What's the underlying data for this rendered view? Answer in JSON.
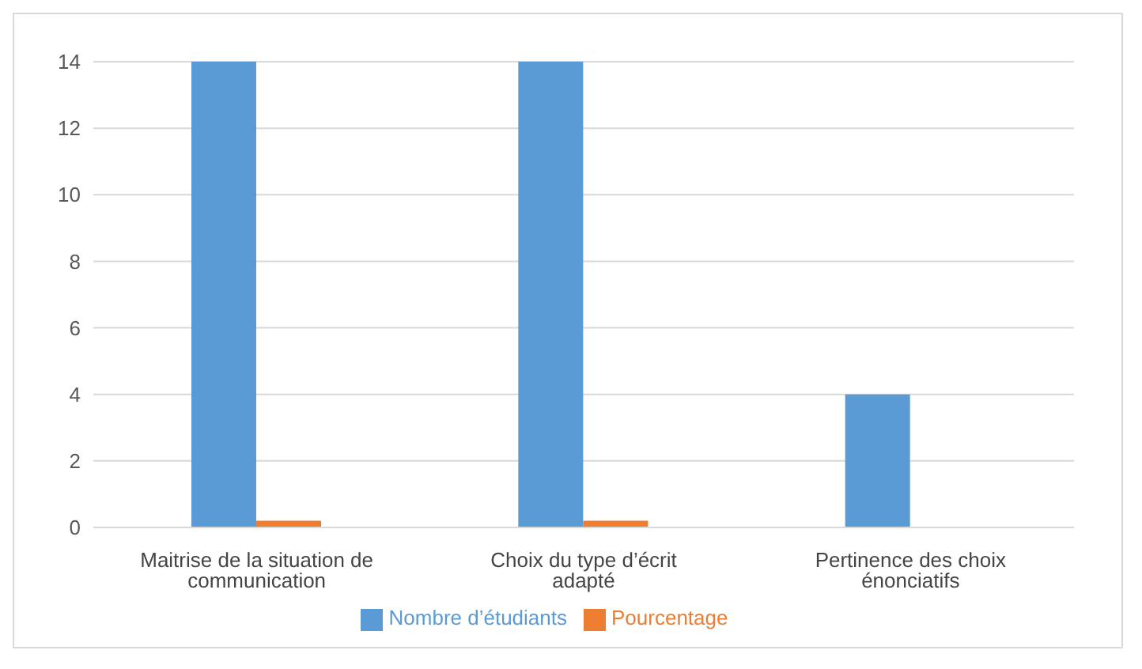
{
  "chart_data": {
    "type": "bar",
    "categories": [
      "Maitrise de la situation de communication",
      "Choix du type d’écrit adapté",
      "Pertinence des choix énonciatifs"
    ],
    "series": [
      {
        "name": "Nombre d’étudiants",
        "color": "#5b9bd5",
        "values": [
          14,
          14,
          4
        ]
      },
      {
        "name": "Pourcentage",
        "color": "#ed7d31",
        "values": [
          0.2,
          0.2,
          0
        ]
      }
    ],
    "ylim": [
      0,
      14
    ],
    "yticks": [
      0,
      2,
      4,
      6,
      8,
      10,
      12,
      14
    ],
    "grid": "y",
    "legend": "bottom"
  }
}
